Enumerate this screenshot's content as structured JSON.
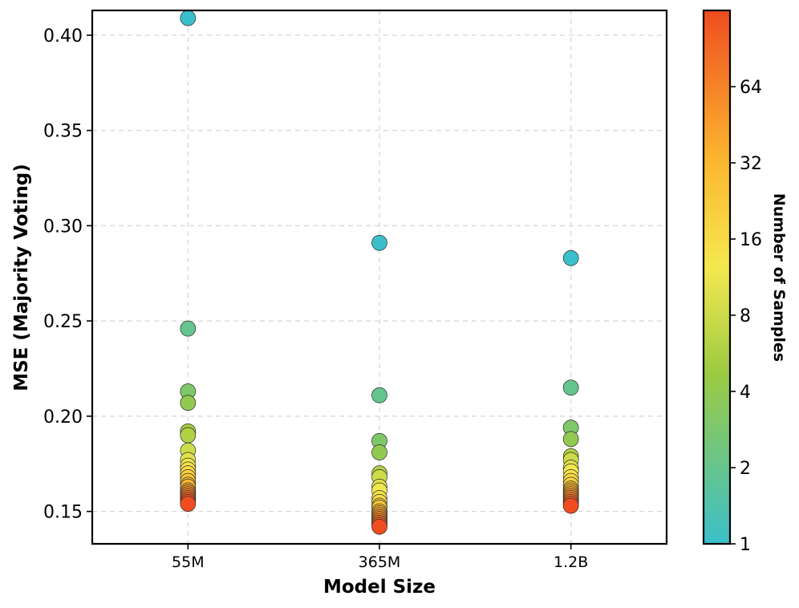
{
  "chart_data": {
    "type": "scatter",
    "xlabel": "Model Size",
    "ylabel": "MSE (Majority Voting)",
    "categories": [
      "55M",
      "365M",
      "1.2B"
    ],
    "ylim": [
      0.133,
      0.413
    ],
    "yticks": [
      0.15,
      0.2,
      0.25,
      0.3,
      0.35,
      0.4
    ],
    "ytick_labels": [
      "0.15",
      "0.20",
      "0.25",
      "0.30",
      "0.35",
      "0.40"
    ],
    "grid": true,
    "colorbar": {
      "label": "Number of Samples",
      "scale": "log2",
      "range": [
        1,
        128
      ],
      "ticks": [
        1,
        2,
        4,
        8,
        16,
        32,
        64
      ],
      "tick_labels": [
        "1",
        "2",
        "4",
        "8",
        "16",
        "32",
        "64"
      ],
      "colormap": [
        {
          "t": 0.0,
          "color": "#3bbfcb"
        },
        {
          "t": 0.32,
          "color": "#9ccb42"
        },
        {
          "t": 0.52,
          "color": "#f5e84f"
        },
        {
          "t": 0.72,
          "color": "#fbb62f"
        },
        {
          "t": 1.0,
          "color": "#ef4d20"
        }
      ]
    },
    "series": [
      {
        "name": "55M",
        "points": [
          {
            "samples": 1,
            "mse": 0.409
          },
          {
            "samples": 2,
            "mse": 0.246
          },
          {
            "samples": 3,
            "mse": 0.213
          },
          {
            "samples": 4,
            "mse": 0.207
          },
          {
            "samples": 5,
            "mse": 0.192
          },
          {
            "samples": 6,
            "mse": 0.19
          },
          {
            "samples": 8,
            "mse": 0.182
          },
          {
            "samples": 10,
            "mse": 0.177
          },
          {
            "samples": 12,
            "mse": 0.174
          },
          {
            "samples": 14,
            "mse": 0.172
          },
          {
            "samples": 16,
            "mse": 0.17
          },
          {
            "samples": 20,
            "mse": 0.168
          },
          {
            "samples": 24,
            "mse": 0.166
          },
          {
            "samples": 28,
            "mse": 0.164
          },
          {
            "samples": 32,
            "mse": 0.163
          },
          {
            "samples": 40,
            "mse": 0.161
          },
          {
            "samples": 48,
            "mse": 0.16
          },
          {
            "samples": 56,
            "mse": 0.159
          },
          {
            "samples": 64,
            "mse": 0.158
          },
          {
            "samples": 80,
            "mse": 0.157
          },
          {
            "samples": 96,
            "mse": 0.156
          },
          {
            "samples": 112,
            "mse": 0.155
          },
          {
            "samples": 128,
            "mse": 0.154
          }
        ]
      },
      {
        "name": "365M",
        "points": [
          {
            "samples": 1,
            "mse": 0.291
          },
          {
            "samples": 2,
            "mse": 0.211
          },
          {
            "samples": 3,
            "mse": 0.187
          },
          {
            "samples": 4,
            "mse": 0.181
          },
          {
            "samples": 6,
            "mse": 0.17
          },
          {
            "samples": 8,
            "mse": 0.168
          },
          {
            "samples": 10,
            "mse": 0.163
          },
          {
            "samples": 12,
            "mse": 0.161
          },
          {
            "samples": 14,
            "mse": 0.157
          },
          {
            "samples": 16,
            "mse": 0.155
          },
          {
            "samples": 20,
            "mse": 0.153
          },
          {
            "samples": 24,
            "mse": 0.152
          },
          {
            "samples": 28,
            "mse": 0.15
          },
          {
            "samples": 32,
            "mse": 0.149
          },
          {
            "samples": 40,
            "mse": 0.148
          },
          {
            "samples": 48,
            "mse": 0.147
          },
          {
            "samples": 56,
            "mse": 0.146
          },
          {
            "samples": 64,
            "mse": 0.145
          },
          {
            "samples": 80,
            "mse": 0.144
          },
          {
            "samples": 96,
            "mse": 0.143
          },
          {
            "samples": 128,
            "mse": 0.142
          }
        ]
      },
      {
        "name": "1.2B",
        "points": [
          {
            "samples": 1,
            "mse": 0.283
          },
          {
            "samples": 2,
            "mse": 0.215
          },
          {
            "samples": 3,
            "mse": 0.194
          },
          {
            "samples": 4,
            "mse": 0.188
          },
          {
            "samples": 6,
            "mse": 0.179
          },
          {
            "samples": 8,
            "mse": 0.177
          },
          {
            "samples": 10,
            "mse": 0.173
          },
          {
            "samples": 12,
            "mse": 0.171
          },
          {
            "samples": 14,
            "mse": 0.168
          },
          {
            "samples": 16,
            "mse": 0.166
          },
          {
            "samples": 20,
            "mse": 0.164
          },
          {
            "samples": 24,
            "mse": 0.162
          },
          {
            "samples": 28,
            "mse": 0.161
          },
          {
            "samples": 32,
            "mse": 0.16
          },
          {
            "samples": 40,
            "mse": 0.159
          },
          {
            "samples": 48,
            "mse": 0.158
          },
          {
            "samples": 56,
            "mse": 0.157
          },
          {
            "samples": 64,
            "mse": 0.156
          },
          {
            "samples": 80,
            "mse": 0.155
          },
          {
            "samples": 96,
            "mse": 0.154
          },
          {
            "samples": 128,
            "mse": 0.153
          }
        ]
      }
    ]
  }
}
